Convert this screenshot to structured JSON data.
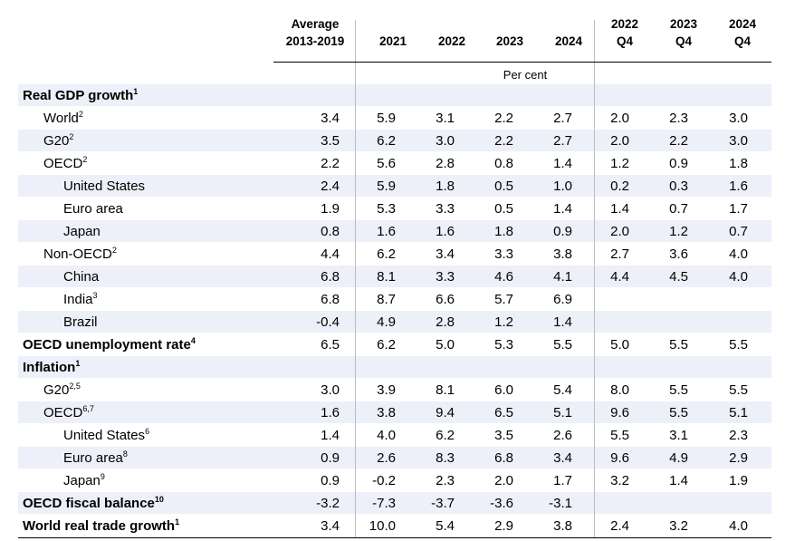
{
  "header": {
    "columns": [
      "Average\n2013-2019",
      "2021",
      "2022",
      "2023",
      "2024",
      "2022\nQ4",
      "2023\nQ4",
      "2024\nQ4"
    ],
    "unit": "Per cent"
  },
  "rows": [
    {
      "label": "Real GDP growth",
      "sup": "1",
      "level": 0,
      "bold": true,
      "values": [
        "",
        "",
        "",
        "",
        "",
        "",
        "",
        ""
      ]
    },
    {
      "label": "World",
      "sup": "2",
      "level": 1,
      "bold": false,
      "values": [
        "3.4",
        "5.9",
        "3.1",
        "2.2",
        "2.7",
        "2.0",
        "2.3",
        "3.0"
      ]
    },
    {
      "label": "G20",
      "sup": "2",
      "level": 1,
      "bold": false,
      "values": [
        "3.5",
        "6.2",
        "3.0",
        "2.2",
        "2.7",
        "2.0",
        "2.2",
        "3.0"
      ]
    },
    {
      "label": "OECD",
      "sup": "2",
      "level": 1,
      "bold": false,
      "values": [
        "2.2",
        "5.6",
        "2.8",
        "0.8",
        "1.4",
        "1.2",
        "0.9",
        "1.8"
      ]
    },
    {
      "label": "United States",
      "sup": "",
      "level": 2,
      "bold": false,
      "values": [
        "2.4",
        "5.9",
        "1.8",
        "0.5",
        "1.0",
        "0.2",
        "0.3",
        "1.6"
      ]
    },
    {
      "label": "Euro area",
      "sup": "",
      "level": 2,
      "bold": false,
      "values": [
        "1.9",
        "5.3",
        "3.3",
        "0.5",
        "1.4",
        "1.4",
        "0.7",
        "1.7"
      ]
    },
    {
      "label": "Japan",
      "sup": "",
      "level": 2,
      "bold": false,
      "values": [
        "0.8",
        "1.6",
        "1.6",
        "1.8",
        "0.9",
        "2.0",
        "1.2",
        "0.7"
      ]
    },
    {
      "label": "Non-OECD",
      "sup": "2",
      "level": 1,
      "bold": false,
      "values": [
        "4.4",
        "6.2",
        "3.4",
        "3.3",
        "3.8",
        "2.7",
        "3.6",
        "4.0"
      ]
    },
    {
      "label": "China",
      "sup": "",
      "level": 2,
      "bold": false,
      "values": [
        "6.8",
        "8.1",
        "3.3",
        "4.6",
        "4.1",
        "4.4",
        "4.5",
        "4.0"
      ]
    },
    {
      "label": "India",
      "sup": "3",
      "level": 2,
      "bold": false,
      "values": [
        "6.8",
        "8.7",
        "6.6",
        "5.7",
        "6.9",
        "",
        "",
        ""
      ]
    },
    {
      "label": "Brazil",
      "sup": "",
      "level": 2,
      "bold": false,
      "values": [
        "-0.4",
        "4.9",
        "2.8",
        "1.2",
        "1.4",
        "",
        "",
        ""
      ]
    },
    {
      "label": "OECD unemployment rate",
      "sup": "4",
      "level": 0,
      "bold": true,
      "values": [
        "6.5",
        "6.2",
        "5.0",
        "5.3",
        "5.5",
        "5.0",
        "5.5",
        "5.5"
      ]
    },
    {
      "label": "Inflation",
      "sup": "1",
      "level": 0,
      "bold": true,
      "values": [
        "",
        "",
        "",
        "",
        "",
        "",
        "",
        ""
      ]
    },
    {
      "label": "G20",
      "sup": "2,5",
      "level": 1,
      "bold": false,
      "values": [
        "3.0",
        "3.9",
        "8.1",
        "6.0",
        "5.4",
        "8.0",
        "5.5",
        "5.5"
      ]
    },
    {
      "label": "OECD",
      "sup": "6,7",
      "level": 1,
      "bold": false,
      "values": [
        "1.6",
        "3.8",
        "9.4",
        "6.5",
        "5.1",
        "9.6",
        "5.5",
        "5.1"
      ]
    },
    {
      "label": "United States",
      "sup": "6",
      "level": 2,
      "bold": false,
      "values": [
        "1.4",
        "4.0",
        "6.2",
        "3.5",
        "2.6",
        "5.5",
        "3.1",
        "2.3"
      ]
    },
    {
      "label": "Euro area",
      "sup": "8",
      "level": 2,
      "bold": false,
      "values": [
        "0.9",
        "2.6",
        "8.3",
        "6.8",
        "3.4",
        "9.6",
        "4.9",
        "2.9"
      ]
    },
    {
      "label": "Japan",
      "sup": "9",
      "level": 2,
      "bold": false,
      "values": [
        "0.9",
        "-0.2",
        "2.3",
        "2.0",
        "1.7",
        "3.2",
        "1.4",
        "1.9"
      ]
    },
    {
      "label": "OECD fiscal balance",
      "sup": "10",
      "level": 0,
      "bold": true,
      "values": [
        "-3.2",
        "-7.3",
        "-3.7",
        "-3.6",
        "-3.1",
        "",
        "",
        ""
      ]
    },
    {
      "label": "World real trade growth",
      "sup": "1",
      "level": 0,
      "bold": true,
      "values": [
        "3.4",
        "10.0",
        "5.4",
        "2.9",
        "3.8",
        "2.4",
        "3.2",
        "4.0"
      ]
    }
  ]
}
